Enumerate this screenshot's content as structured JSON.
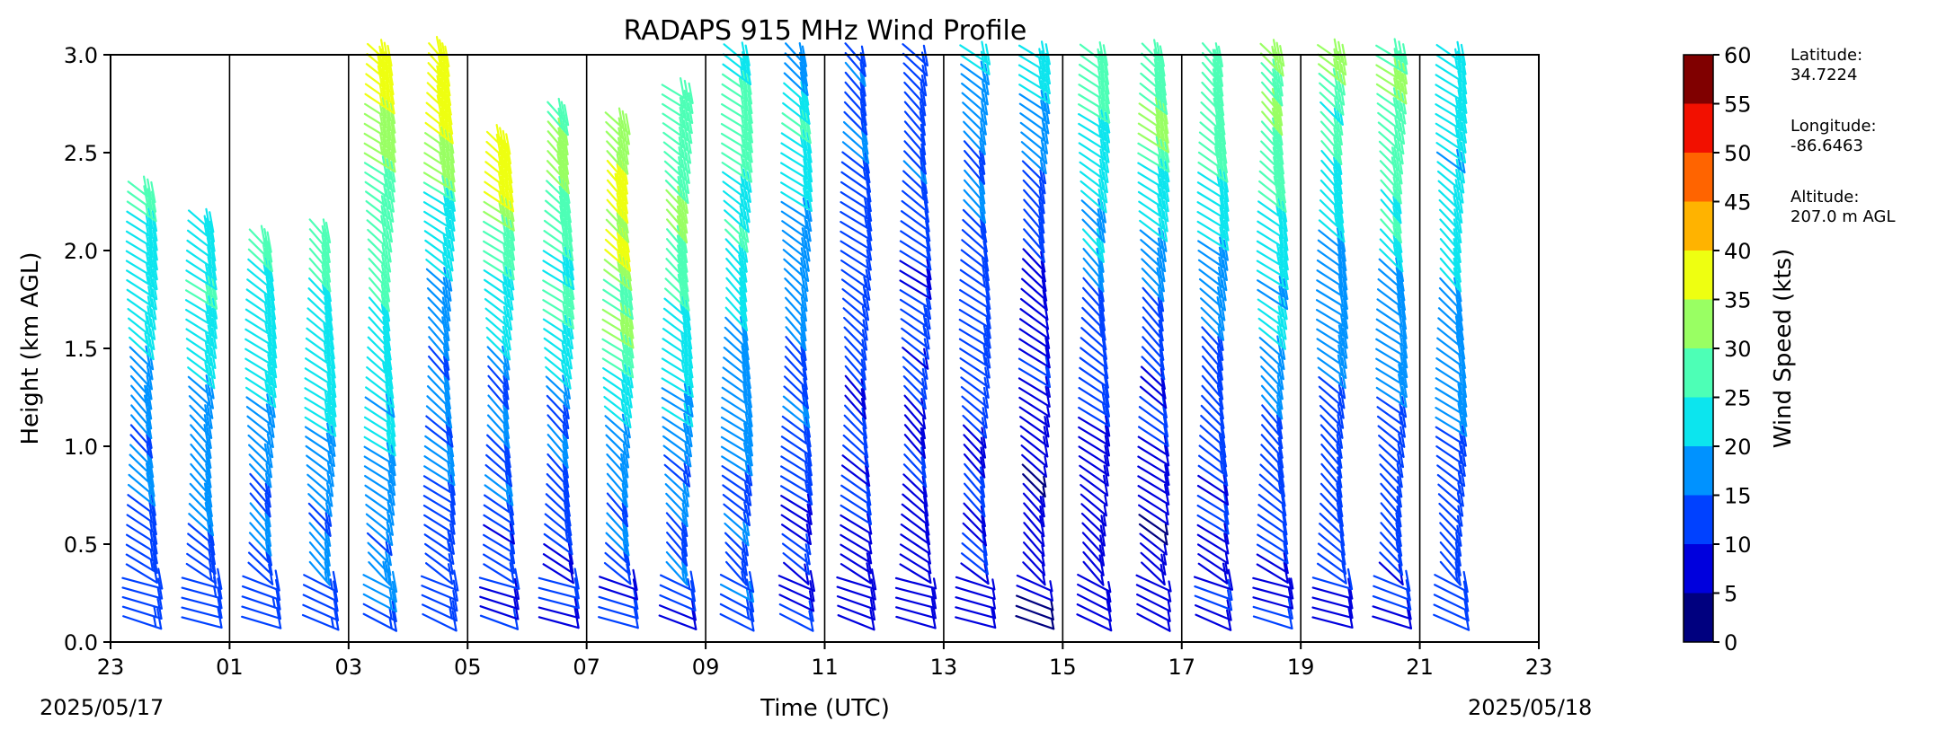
{
  "chart_data": {
    "type": "wind-barb",
    "title": "RADAPS 915 MHz Wind Profile",
    "xlabel": "Time (UTC)",
    "ylabel": "Height (km AGL)",
    "xlim_hours": [
      0,
      24
    ],
    "ylim": [
      0,
      3.0
    ],
    "x_ticks": [
      "23",
      "01",
      "03",
      "05",
      "07",
      "09",
      "11",
      "13",
      "15",
      "17",
      "19",
      "21",
      "23"
    ],
    "y_ticks": [
      "0.0",
      "0.5",
      "1.0",
      "1.5",
      "2.0",
      "2.5",
      "3.0"
    ],
    "start_date": "2025/05/17",
    "end_date": "2025/05/18",
    "grid": "vertical lines every 2 hours",
    "colorbar": {
      "label": "Wind Speed (kts)",
      "bounds": [
        0,
        5,
        10,
        15,
        20,
        25,
        30,
        35,
        40,
        45,
        50,
        55,
        60
      ],
      "colors": [
        "#00007f",
        "#0000dd",
        "#0041ff",
        "#0092ff",
        "#0ce5ee",
        "#4dffb6",
        "#99ff63",
        "#eeff11",
        "#ffb300",
        "#ff6400",
        "#f21000",
        "#800000"
      ]
    },
    "profiles": [
      {
        "time": "23:30",
        "top_km": 2.3,
        "speed_kts": [
          12,
          13,
          15,
          17,
          20,
          24,
          28
        ]
      },
      {
        "time": "00:30",
        "top_km": 2.15,
        "speed_kts": [
          12,
          14,
          16,
          18,
          21,
          25,
          22
        ]
      },
      {
        "time": "01:30",
        "top_km": 2.05,
        "speed_kts": [
          11,
          13,
          15,
          18,
          21,
          24,
          26
        ]
      },
      {
        "time": "02:30",
        "top_km": 2.1,
        "speed_kts": [
          12,
          14,
          16,
          20,
          23,
          24,
          26
        ]
      },
      {
        "time": "03:30",
        "top_km": 3.0,
        "speed_kts": [
          14,
          16,
          18,
          21,
          24,
          27,
          33,
          37
        ]
      },
      {
        "time": "04:30",
        "top_km": 3.0,
        "speed_kts": [
          10,
          12,
          14,
          16,
          18,
          24,
          35,
          40
        ]
      },
      {
        "time": "05:30",
        "top_km": 2.55,
        "speed_kts": [
          8,
          11,
          13,
          15,
          18,
          22,
          34,
          38
        ]
      },
      {
        "time": "06:30",
        "top_km": 2.7,
        "speed_kts": [
          9,
          11,
          13,
          16,
          24,
          26,
          30,
          32
        ]
      },
      {
        "time": "07:30",
        "top_km": 2.65,
        "speed_kts": [
          10,
          12,
          16,
          20,
          28,
          34,
          36,
          32
        ]
      },
      {
        "time": "08:30",
        "top_km": 2.8,
        "speed_kts": [
          11,
          13,
          16,
          19,
          24,
          30,
          30,
          28
        ]
      },
      {
        "time": "09:30",
        "top_km": 3.0,
        "speed_kts": [
          12,
          14,
          16,
          18,
          21,
          24,
          27,
          23
        ]
      },
      {
        "time": "10:30",
        "top_km": 3.0,
        "speed_kts": [
          8,
          10,
          12,
          14,
          16,
          19,
          24,
          18
        ]
      },
      {
        "time": "11:30",
        "top_km": 3.0,
        "speed_kts": [
          8,
          9,
          10,
          11,
          12,
          13,
          14,
          15
        ]
      },
      {
        "time": "12:30",
        "top_km": 3.0,
        "speed_kts": [
          7,
          8,
          9,
          10,
          11,
          12,
          13,
          14
        ]
      },
      {
        "time": "13:30",
        "top_km": 3.0,
        "speed_kts": [
          8,
          9,
          10,
          11,
          12,
          14,
          16,
          20
        ]
      },
      {
        "time": "14:30",
        "top_km": 3.0,
        "speed_kts": [
          5,
          6,
          7,
          8,
          9,
          12,
          18,
          24
        ]
      },
      {
        "time": "15:30",
        "top_km": 3.0,
        "speed_kts": [
          6,
          7,
          9,
          11,
          14,
          20,
          24,
          26
        ]
      },
      {
        "time": "16:30",
        "top_km": 3.0,
        "speed_kts": [
          5,
          6,
          8,
          10,
          14,
          22,
          30,
          28
        ]
      },
      {
        "time": "17:30",
        "top_km": 3.0,
        "speed_kts": [
          8,
          9,
          11,
          13,
          16,
          22,
          27,
          30
        ]
      },
      {
        "time": "18:30",
        "top_km": 3.0,
        "speed_kts": [
          9,
          10,
          12,
          16,
          20,
          24,
          29,
          33
        ]
      },
      {
        "time": "19:30",
        "top_km": 3.0,
        "speed_kts": [
          10,
          11,
          13,
          15,
          18,
          21,
          26,
          30
        ]
      },
      {
        "time": "20:30",
        "top_km": 3.0,
        "speed_kts": [
          10,
          11,
          13,
          15,
          18,
          24,
          28,
          30
        ]
      },
      {
        "time": "21:30",
        "top_km": 3.0,
        "speed_kts": [
          10,
          12,
          14,
          16,
          19,
          21,
          23,
          22
        ]
      }
    ]
  },
  "station": {
    "lat_label": "Latitude:",
    "lat_value": "34.7224",
    "lon_label": "Longitude:",
    "lon_value": "-86.6463",
    "alt_label": "Altitude:",
    "alt_value": "207.0 m AGL"
  }
}
